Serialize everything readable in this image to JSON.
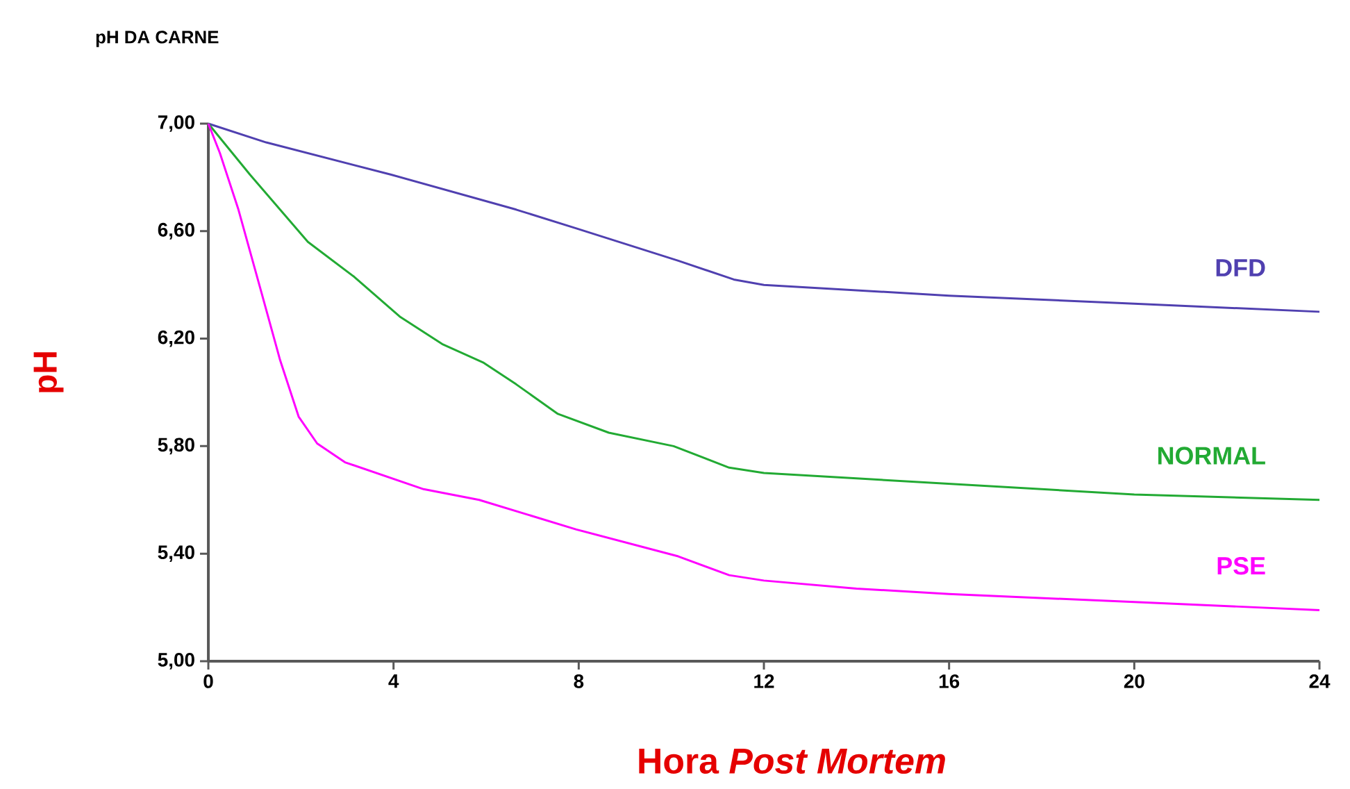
{
  "chart_data": {
    "type": "line",
    "title": "pH DA CARNE",
    "xlabel": "Hora *Post Mortem*",
    "ylabel": "pH",
    "xlim": [
      0,
      24
    ],
    "xticks": [
      0,
      4,
      8,
      12,
      16,
      20,
      24
    ],
    "ylim": [
      5,
      7
    ],
    "yticks": [
      {
        "value": 5,
        "label": "5,00"
      },
      {
        "value": 5.4,
        "label": "5,40"
      },
      {
        "value": 5.8,
        "label": "5,80"
      },
      {
        "value": 6.2,
        "label": "6,20"
      },
      {
        "value": 6.6,
        "label": "6,60"
      },
      {
        "value": 7,
        "label": "7,00"
      }
    ],
    "grid": false,
    "marker": "none",
    "line_style": "solid",
    "series": [
      {
        "name": "DFD",
        "color": "#5040b0",
        "x": [
          0,
          1.25,
          3.95,
          6.65,
          7.95,
          10.15,
          11.35,
          12,
          14,
          16,
          20,
          24
        ],
        "values": [
          7.0,
          6.93,
          6.81,
          6.68,
          6.61,
          6.49,
          6.42,
          6.4,
          6.38,
          6.36,
          6.33,
          6.3
        ]
      },
      {
        "name": "NORMAL",
        "color": "#22aa33",
        "x": [
          0,
          0.9,
          2.15,
          3.15,
          4.15,
          5.05,
          5.95,
          6.65,
          7.55,
          8.65,
          10.05,
          11.25,
          12,
          14,
          16,
          20,
          24
        ],
        "values": [
          7.0,
          6.81,
          6.56,
          6.43,
          6.28,
          6.18,
          6.11,
          6.03,
          5.92,
          5.85,
          5.8,
          5.72,
          5.7,
          5.68,
          5.66,
          5.62,
          5.6
        ]
      },
      {
        "name": "PSE",
        "color": "#ff00ff",
        "x": [
          0,
          0.25,
          0.65,
          1.15,
          1.55,
          1.95,
          2.35,
          2.95,
          4.65,
          5.85,
          7.95,
          10.15,
          11.25,
          12,
          14,
          16,
          20,
          24
        ],
        "values": [
          7.0,
          6.89,
          6.68,
          6.37,
          6.12,
          5.91,
          5.81,
          5.74,
          5.64,
          5.6,
          5.49,
          5.39,
          5.32,
          5.3,
          5.27,
          5.25,
          5.22,
          5.19
        ]
      }
    ]
  }
}
